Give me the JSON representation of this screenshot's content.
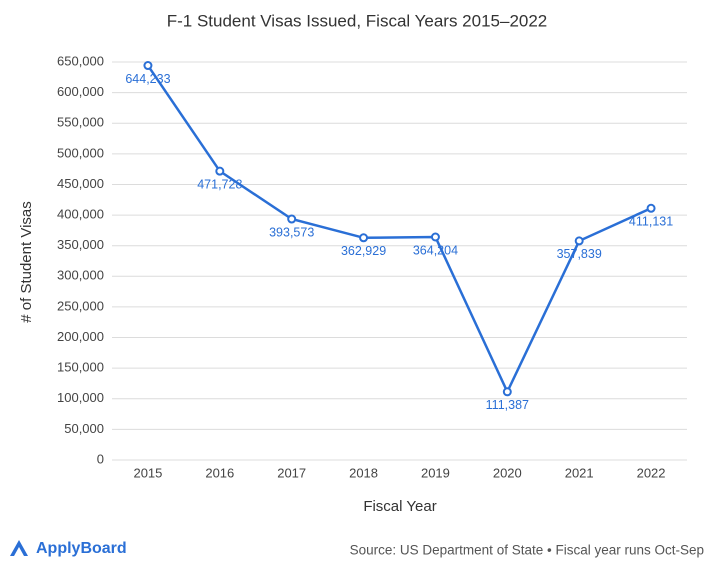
{
  "chart_data": {
    "type": "line",
    "title": "F-1 Student Visas Issued, Fiscal Years 2015–2022",
    "x_label": "Fiscal Year",
    "y_label": "# of Student Visas",
    "categories": [
      "2015",
      "2016",
      "2017",
      "2018",
      "2019",
      "2020",
      "2021",
      "2022"
    ],
    "values": [
      644233,
      471728,
      393573,
      362929,
      364204,
      111387,
      357839,
      411131
    ],
    "value_labels": [
      "644,233",
      "471,728",
      "393,573",
      "362,929",
      "364,204",
      "111,387",
      "357,839",
      "411,131"
    ],
    "color": "#2a6fd6",
    "ylim": [
      0,
      650000
    ],
    "yticks": [
      0,
      {
        "value": 50000,
        "label": "50,000"
      },
      {
        "value": 100000,
        "label": "100,000"
      },
      {
        "value": 150000,
        "label": "150,000"
      },
      {
        "value": 200000,
        "label": "200,000"
      },
      {
        "value": 250000,
        "label": "250,000"
      },
      {
        "value": 300000,
        "label": "300,000"
      },
      {
        "value": 350000,
        "label": "350,000"
      },
      {
        "value": 400000,
        "label": "400,000"
      },
      {
        "value": 450000,
        "label": "450,000"
      },
      {
        "value": 500000,
        "label": "500,000"
      },
      {
        "value": 550000,
        "label": "550,000"
      },
      {
        "value": 600000,
        "label": "600,000"
      },
      {
        "value": 650000,
        "label": "650,000"
      }
    ],
    "grid": true
  },
  "footer": {
    "brand": "ApplyBoard",
    "source": "Source: US Department of State • Fiscal year runs Oct-Sep"
  }
}
